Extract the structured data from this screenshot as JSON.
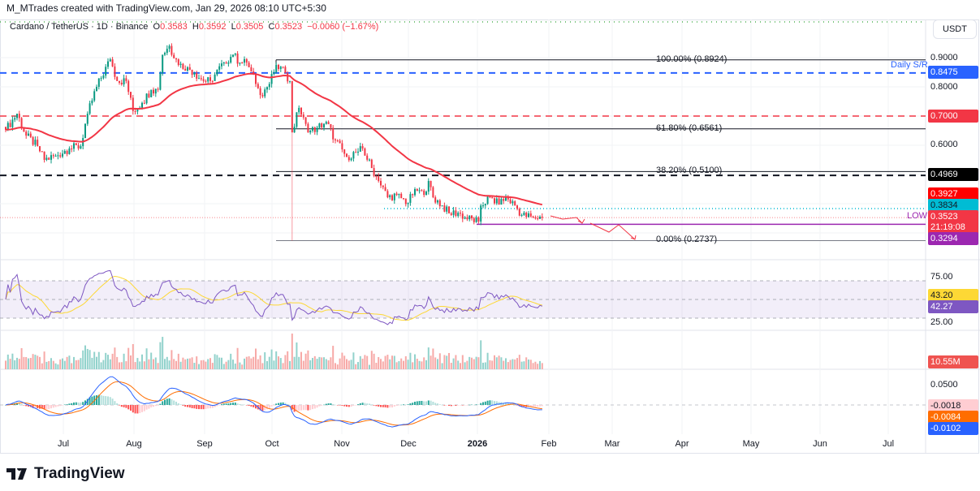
{
  "credit": "M_MTrades created with TradingView.com, Jan 29, 2026 08:10 UTC+5:30",
  "legend": {
    "symbol": "Cardano / TetherUS · 1D · Binance",
    "open_label": "O",
    "open": "0.3583",
    "high_label": "H",
    "high": "0.3592",
    "low_label": "L",
    "low": "0.3505",
    "close_label": "C",
    "close": "0.3523",
    "change": "−0.0060 (−1.67%)"
  },
  "currency": "USDT",
  "price_axis": {
    "ticks": [
      "0.9000",
      "0.8000",
      "0.6000"
    ],
    "tags": {
      "daily_sr": "0.8475",
      "red_level": "0.7000",
      "black_level": "0.4969",
      "ema": "0.3927",
      "cyan_level": "0.3834",
      "last_price": "0.3523",
      "countdown": "21:19:08",
      "low_level": "0.3294"
    }
  },
  "annotations": {
    "daily_sr_label": "Daily S/R",
    "low_label": "LOW",
    "fib": [
      "100.00% (0.8924)",
      "61.80% (0.6561)",
      "38.20% (0.5100)",
      "0.00% (0.2737)"
    ]
  },
  "rsi_axis": {
    "upper": "75.00",
    "lower": "25.00",
    "rsi_ma": "43.20",
    "rsi": "42.27"
  },
  "volume_axis": {
    "last": "10.55M"
  },
  "macd_axis": {
    "tick": "0.0500",
    "histogram": "-0.0018",
    "signal": "-0.0084",
    "macd": "-0.0102"
  },
  "time_axis": [
    "Jul",
    "Aug",
    "Sep",
    "Oct",
    "Nov",
    "Dec",
    "2026",
    "Feb",
    "Mar",
    "Apr",
    "May",
    "Jun",
    "Jul"
  ],
  "brand": "TradingView",
  "colors": {
    "up": "#089981",
    "down": "#f23645",
    "ema": "#f23645",
    "daily_sr": "#2962ff",
    "red_level": "#f23645",
    "black_level": "#131722",
    "cyan_level": "#00bcd4",
    "low_level": "#9c27b0",
    "rsi": "#7e57c2",
    "rsi_ma": "#fdd835",
    "macd": "#2962ff",
    "signal": "#ff6d00"
  },
  "chart_data": {
    "type": "candlestick",
    "symbol": "ADA/USDT",
    "interval": "1D",
    "price_levels": {
      "daily_sr": 0.8475,
      "red": 0.7,
      "black": 0.4969,
      "cyan": 0.3834,
      "low": 0.3294,
      "last": 0.3523
    },
    "fibonacci": [
      {
        "level": "100.00%",
        "price": 0.8924
      },
      {
        "level": "61.80%",
        "price": 0.6561
      },
      {
        "level": "38.20%",
        "price": 0.51
      },
      {
        "level": "0.00%",
        "price": 0.2737
      }
    ],
    "indicators": {
      "ema_last": 0.3927,
      "rsi": 42.27,
      "rsi_ma": 43.2,
      "volume_last": "10.55M",
      "macd": -0.0102,
      "signal": -0.0084,
      "histogram": -0.0018
    },
    "closes": [
      {
        "date": "2025-06-06",
        "close": 0.653
      },
      {
        "date": "2025-06-11",
        "close": 0.708
      },
      {
        "date": "2025-06-15",
        "close": 0.633
      },
      {
        "date": "2025-06-20",
        "close": 0.597
      },
      {
        "date": "2025-06-23",
        "close": 0.55
      },
      {
        "date": "2025-06-28",
        "close": 0.564
      },
      {
        "date": "2025-07-04",
        "close": 0.589
      },
      {
        "date": "2025-07-09",
        "close": 0.597
      },
      {
        "date": "2025-07-12",
        "close": 0.708
      },
      {
        "date": "2025-07-16",
        "close": 0.8
      },
      {
        "date": "2025-07-22",
        "close": 0.894
      },
      {
        "date": "2025-07-25",
        "close": 0.82
      },
      {
        "date": "2025-07-29",
        "close": 0.82
      },
      {
        "date": "2025-08-01",
        "close": 0.717
      },
      {
        "date": "2025-08-05",
        "close": 0.745
      },
      {
        "date": "2025-08-09",
        "close": 0.79
      },
      {
        "date": "2025-08-12",
        "close": 0.79
      },
      {
        "date": "2025-08-14",
        "close": 0.91
      },
      {
        "date": "2025-08-17",
        "close": 0.94
      },
      {
        "date": "2025-08-21",
        "close": 0.875
      },
      {
        "date": "2025-08-25",
        "close": 0.867
      },
      {
        "date": "2025-08-28",
        "close": 0.847
      },
      {
        "date": "2025-09-01",
        "close": 0.82
      },
      {
        "date": "2025-09-04",
        "close": 0.82
      },
      {
        "date": "2025-09-10",
        "close": 0.883
      },
      {
        "date": "2025-09-14",
        "close": 0.91
      },
      {
        "date": "2025-09-17",
        "close": 0.883
      },
      {
        "date": "2025-09-20",
        "close": 0.883
      },
      {
        "date": "2025-09-24",
        "close": 0.81
      },
      {
        "date": "2025-09-26",
        "close": 0.772
      },
      {
        "date": "2025-09-30",
        "close": 0.81
      },
      {
        "date": "2025-10-03",
        "close": 0.875
      },
      {
        "date": "2025-10-07",
        "close": 0.847
      },
      {
        "date": "2025-10-09",
        "close": 0.82
      },
      {
        "date": "2025-10-10",
        "close": 0.644,
        "low": 0.2737
      },
      {
        "date": "2025-10-13",
        "close": 0.728
      },
      {
        "date": "2025-10-17",
        "close": 0.644
      },
      {
        "date": "2025-10-21",
        "close": 0.66
      },
      {
        "date": "2025-10-25",
        "close": 0.68
      },
      {
        "date": "2025-10-29",
        "close": 0.617
      },
      {
        "date": "2025-11-03",
        "close": 0.56
      },
      {
        "date": "2025-11-08",
        "close": 0.578
      },
      {
        "date": "2025-11-10",
        "close": 0.589
      },
      {
        "date": "2025-11-14",
        "close": 0.522
      },
      {
        "date": "2025-11-17",
        "close": 0.478
      },
      {
        "date": "2025-11-21",
        "close": 0.422
      },
      {
        "date": "2025-11-25",
        "close": 0.43
      },
      {
        "date": "2025-11-30",
        "close": 0.403
      },
      {
        "date": "2025-12-03",
        "close": 0.45
      },
      {
        "date": "2025-12-07",
        "close": 0.43
      },
      {
        "date": "2025-12-09",
        "close": 0.478
      },
      {
        "date": "2025-12-11",
        "close": 0.422
      },
      {
        "date": "2025-12-15",
        "close": 0.394
      },
      {
        "date": "2025-12-18",
        "close": 0.367
      },
      {
        "date": "2025-12-22",
        "close": 0.369
      },
      {
        "date": "2025-12-25",
        "close": 0.353
      },
      {
        "date": "2025-12-31",
        "close": 0.339
      },
      {
        "date": "2026-01-01",
        "close": 0.394
      },
      {
        "date": "2026-01-05",
        "close": 0.422
      },
      {
        "date": "2026-01-09",
        "close": 0.397
      },
      {
        "date": "2026-01-12",
        "close": 0.422
      },
      {
        "date": "2026-01-16",
        "close": 0.394
      },
      {
        "date": "2026-01-19",
        "close": 0.361
      },
      {
        "date": "2026-01-24",
        "close": 0.353
      },
      {
        "date": "2026-01-28",
        "close": 0.3523
      }
    ]
  }
}
